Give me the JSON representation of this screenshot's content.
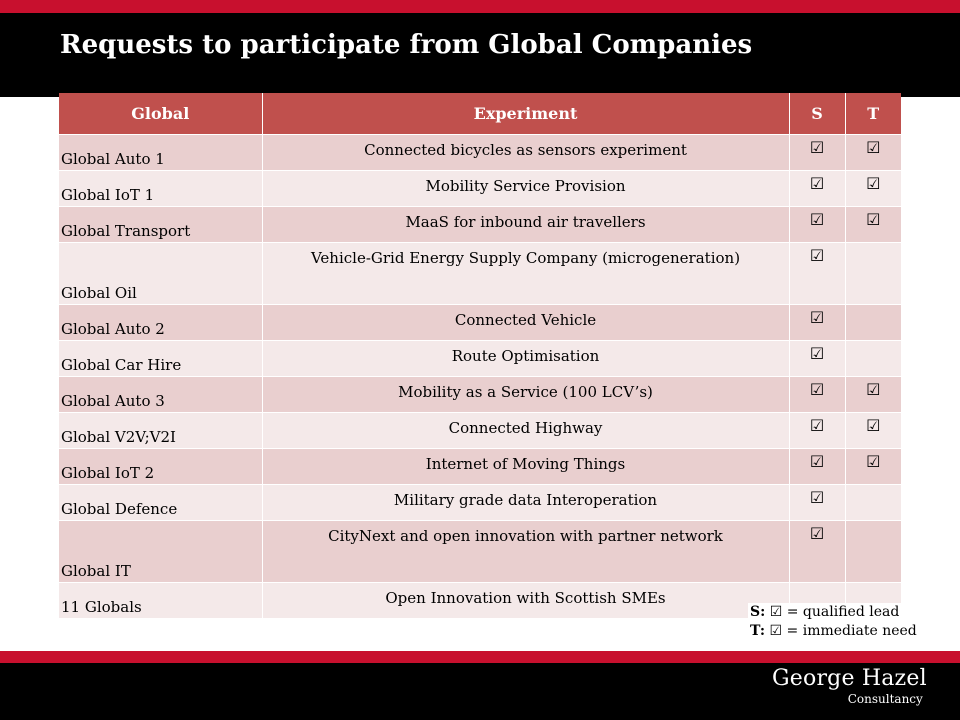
{
  "slide": {
    "title": "Requests to participate from Global Companies"
  },
  "table": {
    "headers": [
      "Global",
      "Experiment",
      "S",
      "T"
    ],
    "check_glyph": "☑",
    "rows": [
      {
        "company": "Global Auto 1",
        "experiment": "Connected bicycles as sensors experiment",
        "s": "☑",
        "t": "☑"
      },
      {
        "company": "Global IoT 1",
        "experiment": "Mobility Service Provision",
        "s": "☑",
        "t": "☑"
      },
      {
        "company": "Global Transport",
        "experiment": "MaaS for inbound air travellers",
        "s": "☑",
        "t": "☑"
      },
      {
        "company": "Global Oil",
        "experiment": "Vehicle-Grid Energy Supply Company (microgeneration)",
        "s": "☑",
        "t": ""
      },
      {
        "company": "Global Auto 2",
        "experiment": "Connected Vehicle",
        "s": "☑",
        "t": ""
      },
      {
        "company": "Global Car Hire",
        "experiment": "Route Optimisation",
        "s": "☑",
        "t": ""
      },
      {
        "company": "Global Auto 3",
        "experiment": "Mobility as a Service (100 LCV’s)",
        "s": "☑",
        "t": "☑"
      },
      {
        "company": "Global V2V;V2I",
        "experiment": "Connected Highway",
        "s": "☑",
        "t": "☑"
      },
      {
        "company": "Global IoT 2",
        "experiment": "Internet of Moving Things",
        "s": "☑",
        "t": "☑"
      },
      {
        "company": "Global Defence",
        "experiment": "Military grade data Interoperation",
        "s": "☑",
        "t": ""
      },
      {
        "company": "Global IT",
        "experiment": "CityNext and open innovation with partner network",
        "s": "☑",
        "t": ""
      },
      {
        "company": "11 Globals",
        "experiment": "Open Innovation with Scottish SMEs",
        "s": "",
        "t": ""
      }
    ]
  },
  "legend": {
    "s_key": "S:",
    "s_text": " = qualified lead",
    "t_key": "T:",
    "t_text": " = immediate need"
  },
  "logo": {
    "name": "George Hazel",
    "subtitle": "Consultancy"
  }
}
